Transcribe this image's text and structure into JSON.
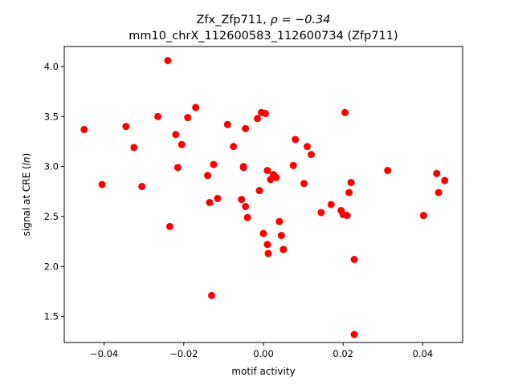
{
  "chart_data": {
    "type": "scatter",
    "title_line1": "Zfx_Zfp711, ",
    "title_rho": "ρ = −0.34",
    "title_line2": "mm10_chrX_112600583_112600734 (Zfp711)",
    "xlabel": "motif activity",
    "ylabel_prefix": "signal at CRE (",
    "ylabel_math": "ln",
    "ylabel_suffix": ")",
    "xlim": [
      -0.05,
      0.05
    ],
    "ylim": [
      1.24,
      4.2
    ],
    "xticks": [
      -0.04,
      -0.02,
      0.0,
      0.02,
      0.04
    ],
    "xtick_labels": [
      "−0.04",
      "−0.02",
      "0.00",
      "0.02",
      "0.04"
    ],
    "yticks": [
      1.5,
      2.0,
      2.5,
      3.0,
      3.5,
      4.0
    ],
    "ytick_labels": [
      "1.5",
      "2.0",
      "2.5",
      "3.0",
      "3.5",
      "4.0"
    ],
    "grid": false,
    "marker_color": "#ff0000",
    "points": [
      {
        "x": -0.045,
        "y": 3.37
      },
      {
        "x": -0.0405,
        "y": 2.82
      },
      {
        "x": -0.0345,
        "y": 3.4
      },
      {
        "x": -0.0325,
        "y": 3.19
      },
      {
        "x": -0.0305,
        "y": 2.8
      },
      {
        "x": -0.0265,
        "y": 3.5
      },
      {
        "x": -0.024,
        "y": 4.06
      },
      {
        "x": -0.0235,
        "y": 2.4
      },
      {
        "x": -0.022,
        "y": 3.32
      },
      {
        "x": -0.0215,
        "y": 2.99
      },
      {
        "x": -0.0205,
        "y": 3.22
      },
      {
        "x": -0.019,
        "y": 3.49
      },
      {
        "x": -0.017,
        "y": 3.59
      },
      {
        "x": -0.014,
        "y": 2.91
      },
      {
        "x": -0.0135,
        "y": 2.64
      },
      {
        "x": -0.013,
        "y": 1.71
      },
      {
        "x": -0.0125,
        "y": 3.02
      },
      {
        "x": -0.0115,
        "y": 2.68
      },
      {
        "x": -0.009,
        "y": 3.42
      },
      {
        "x": -0.0075,
        "y": 3.2
      },
      {
        "x": -0.0055,
        "y": 2.67
      },
      {
        "x": -0.005,
        "y": 3.0
      },
      {
        "x": -0.005,
        "y": 2.99
      },
      {
        "x": -0.0045,
        "y": 2.6
      },
      {
        "x": -0.0045,
        "y": 3.38
      },
      {
        "x": -0.004,
        "y": 2.49
      },
      {
        "x": -0.0015,
        "y": 3.48
      },
      {
        "x": -0.001,
        "y": 2.76
      },
      {
        "x": -0.0005,
        "y": 3.54
      },
      {
        "x": 0.0,
        "y": 2.33
      },
      {
        "x": 0.0005,
        "y": 3.53
      },
      {
        "x": 0.001,
        "y": 2.96
      },
      {
        "x": 0.001,
        "y": 2.22
      },
      {
        "x": 0.0012,
        "y": 2.13
      },
      {
        "x": 0.0018,
        "y": 2.87
      },
      {
        "x": 0.0025,
        "y": 2.92
      },
      {
        "x": 0.0032,
        "y": 2.89
      },
      {
        "x": 0.004,
        "y": 2.45
      },
      {
        "x": 0.0045,
        "y": 2.31
      },
      {
        "x": 0.005,
        "y": 2.17
      },
      {
        "x": 0.0075,
        "y": 3.01
      },
      {
        "x": 0.008,
        "y": 3.27
      },
      {
        "x": 0.0102,
        "y": 2.83
      },
      {
        "x": 0.011,
        "y": 3.2
      },
      {
        "x": 0.012,
        "y": 3.12
      },
      {
        "x": 0.0145,
        "y": 2.54
      },
      {
        "x": 0.017,
        "y": 2.62
      },
      {
        "x": 0.0195,
        "y": 2.56
      },
      {
        "x": 0.02,
        "y": 2.52
      },
      {
        "x": 0.0205,
        "y": 3.54
      },
      {
        "x": 0.021,
        "y": 2.51
      },
      {
        "x": 0.0215,
        "y": 2.74
      },
      {
        "x": 0.022,
        "y": 2.84
      },
      {
        "x": 0.0228,
        "y": 2.07
      },
      {
        "x": 0.0228,
        "y": 1.32
      },
      {
        "x": 0.0312,
        "y": 2.96
      },
      {
        "x": 0.0402,
        "y": 2.51
      },
      {
        "x": 0.0435,
        "y": 2.93
      },
      {
        "x": 0.044,
        "y": 2.74
      },
      {
        "x": 0.0455,
        "y": 2.86
      }
    ]
  }
}
